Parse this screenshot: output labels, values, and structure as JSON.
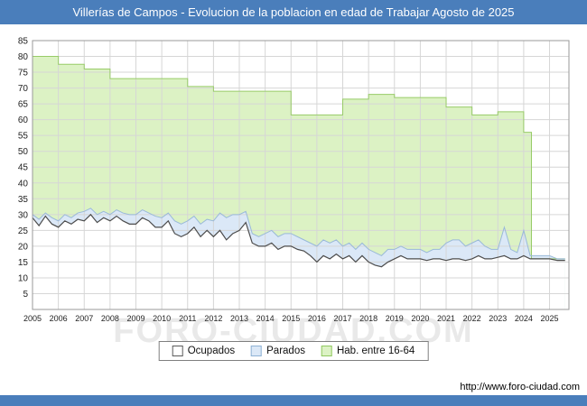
{
  "theme": {
    "bar_color": "#4a7ebb"
  },
  "header": {
    "title": "Villerías de Campos - Evolucion de la poblacion en edad de Trabajar Agosto de 2025"
  },
  "watermark": "FORO-CIUDAD.COM",
  "footer": {
    "url": "http://www.foro-ciudad.com"
  },
  "legend": [
    {
      "label": "Ocupados",
      "fill": "#ffffff",
      "border": "#5a5a5a"
    },
    {
      "label": "Parados",
      "fill": "#dbe8f7",
      "border": "#8fb2d4"
    },
    {
      "label": "Hab. entre 16-64",
      "fill": "#dcf2c4",
      "border": "#90c860"
    }
  ],
  "chart_data": {
    "type": "area",
    "title": "Villerías de Campos - Evolucion de la poblacion en edad de Trabajar Agosto de 2025",
    "xlabel": "",
    "ylabel": "",
    "xlim": [
      2005,
      2025.75
    ],
    "ylim": [
      0,
      85
    ],
    "x_ticks": [
      2005,
      2006,
      2007,
      2008,
      2009,
      2010,
      2011,
      2012,
      2013,
      2014,
      2015,
      2016,
      2017,
      2018,
      2019,
      2020,
      2021,
      2022,
      2023,
      2024,
      2025
    ],
    "y_ticks": [
      5,
      10,
      15,
      20,
      25,
      30,
      35,
      40,
      45,
      50,
      55,
      60,
      65,
      70,
      75,
      80,
      85
    ],
    "grid_color": "#d6d6d6",
    "legend_position": "bottom",
    "series": [
      {
        "name": "Hab. entre 16-64",
        "fill": "#dcf2c4",
        "stroke": "#98cb68",
        "lw": 1,
        "points": [
          [
            2005,
            80
          ],
          [
            2006,
            80
          ],
          [
            2006,
            77.5
          ],
          [
            2007,
            77.5
          ],
          [
            2007,
            76
          ],
          [
            2008,
            76
          ],
          [
            2008,
            73
          ],
          [
            2011,
            73
          ],
          [
            2011,
            70.5
          ],
          [
            2012,
            70.5
          ],
          [
            2012,
            69
          ],
          [
            2015,
            69
          ],
          [
            2015,
            61.5
          ],
          [
            2017,
            61.5
          ],
          [
            2017,
            66.5
          ],
          [
            2018,
            66.5
          ],
          [
            2018,
            68
          ],
          [
            2019,
            68
          ],
          [
            2019,
            67
          ],
          [
            2021,
            67
          ],
          [
            2021,
            64
          ],
          [
            2022,
            64
          ],
          [
            2022,
            61.5
          ],
          [
            2023,
            61.5
          ],
          [
            2023,
            62.5
          ],
          [
            2024,
            62.5
          ],
          [
            2024,
            56
          ],
          [
            2024.3,
            56
          ],
          [
            2024.3,
            16
          ],
          [
            2025.6,
            16
          ]
        ]
      },
      {
        "name": "Parados",
        "fill": "#dbe8f7",
        "stroke": "#9ab9d9",
        "lw": 1,
        "points": [
          [
            2005,
            30
          ],
          [
            2005.25,
            28.5
          ],
          [
            2005.5,
            30.5
          ],
          [
            2005.75,
            29
          ],
          [
            2006,
            28
          ],
          [
            2006.25,
            30
          ],
          [
            2006.5,
            29
          ],
          [
            2006.75,
            30.5
          ],
          [
            2007,
            31
          ],
          [
            2007.25,
            32
          ],
          [
            2007.5,
            30
          ],
          [
            2007.75,
            31
          ],
          [
            2008,
            30
          ],
          [
            2008.25,
            31.5
          ],
          [
            2008.5,
            30.5
          ],
          [
            2008.75,
            30
          ],
          [
            2009,
            30
          ],
          [
            2009.25,
            31.5
          ],
          [
            2009.5,
            30.5
          ],
          [
            2009.75,
            29.5
          ],
          [
            2010,
            29
          ],
          [
            2010.25,
            30.5
          ],
          [
            2010.5,
            28
          ],
          [
            2010.75,
            27
          ],
          [
            2011,
            28
          ],
          [
            2011.25,
            29.5
          ],
          [
            2011.5,
            27
          ],
          [
            2011.75,
            28.5
          ],
          [
            2012,
            28
          ],
          [
            2012.25,
            30.5
          ],
          [
            2012.5,
            29
          ],
          [
            2012.75,
            30
          ],
          [
            2013,
            30
          ],
          [
            2013.25,
            31
          ],
          [
            2013.5,
            24
          ],
          [
            2013.75,
            23
          ],
          [
            2014,
            24
          ],
          [
            2014.25,
            25
          ],
          [
            2014.5,
            23
          ],
          [
            2014.75,
            24
          ],
          [
            2015,
            24
          ],
          [
            2015.25,
            23
          ],
          [
            2015.5,
            22
          ],
          [
            2015.75,
            21
          ],
          [
            2016,
            20
          ],
          [
            2016.25,
            22
          ],
          [
            2016.5,
            21
          ],
          [
            2016.75,
            22
          ],
          [
            2017,
            20
          ],
          [
            2017.25,
            21
          ],
          [
            2017.5,
            19
          ],
          [
            2017.75,
            21
          ],
          [
            2018,
            19
          ],
          [
            2018.25,
            18
          ],
          [
            2018.5,
            17
          ],
          [
            2018.75,
            19
          ],
          [
            2019,
            19
          ],
          [
            2019.25,
            20
          ],
          [
            2019.5,
            19
          ],
          [
            2019.75,
            19
          ],
          [
            2020,
            19
          ],
          [
            2020.25,
            18
          ],
          [
            2020.5,
            19
          ],
          [
            2020.75,
            19
          ],
          [
            2021,
            21
          ],
          [
            2021.25,
            22
          ],
          [
            2021.5,
            22
          ],
          [
            2021.75,
            20
          ],
          [
            2022,
            21
          ],
          [
            2022.25,
            22
          ],
          [
            2022.5,
            20
          ],
          [
            2022.75,
            19
          ],
          [
            2023,
            19
          ],
          [
            2023.25,
            26
          ],
          [
            2023.5,
            19
          ],
          [
            2023.75,
            18
          ],
          [
            2024,
            25
          ],
          [
            2024.25,
            17
          ],
          [
            2024.5,
            17
          ],
          [
            2024.75,
            17
          ],
          [
            2025,
            17
          ],
          [
            2025.3,
            16
          ],
          [
            2025.6,
            16
          ]
        ]
      },
      {
        "name": "Ocupados",
        "fill": "#ffffff",
        "stroke": "#4d4d4d",
        "lw": 1.2,
        "points": [
          [
            2005,
            29
          ],
          [
            2005.25,
            26.5
          ],
          [
            2005.5,
            29.5
          ],
          [
            2005.75,
            27
          ],
          [
            2006,
            26
          ],
          [
            2006.25,
            28
          ],
          [
            2006.5,
            27
          ],
          [
            2006.75,
            28.5
          ],
          [
            2007,
            28
          ],
          [
            2007.25,
            30
          ],
          [
            2007.5,
            27.5
          ],
          [
            2007.75,
            29
          ],
          [
            2008,
            28
          ],
          [
            2008.25,
            29.5
          ],
          [
            2008.5,
            28
          ],
          [
            2008.75,
            27
          ],
          [
            2009,
            27
          ],
          [
            2009.25,
            29
          ],
          [
            2009.5,
            28
          ],
          [
            2009.75,
            26
          ],
          [
            2010,
            26
          ],
          [
            2010.25,
            28
          ],
          [
            2010.5,
            24
          ],
          [
            2010.75,
            23
          ],
          [
            2011,
            24
          ],
          [
            2011.25,
            26
          ],
          [
            2011.5,
            23
          ],
          [
            2011.75,
            25
          ],
          [
            2012,
            23
          ],
          [
            2012.25,
            25
          ],
          [
            2012.5,
            22
          ],
          [
            2012.75,
            24
          ],
          [
            2013,
            25
          ],
          [
            2013.25,
            27.5
          ],
          [
            2013.5,
            21
          ],
          [
            2013.75,
            20
          ],
          [
            2014,
            20
          ],
          [
            2014.25,
            21
          ],
          [
            2014.5,
            19
          ],
          [
            2014.75,
            20
          ],
          [
            2015,
            20
          ],
          [
            2015.25,
            19
          ],
          [
            2015.5,
            18.5
          ],
          [
            2015.75,
            17
          ],
          [
            2016,
            15
          ],
          [
            2016.25,
            17
          ],
          [
            2016.5,
            16
          ],
          [
            2016.75,
            17.5
          ],
          [
            2017,
            16
          ],
          [
            2017.25,
            17
          ],
          [
            2017.5,
            15
          ],
          [
            2017.75,
            17
          ],
          [
            2018,
            15
          ],
          [
            2018.25,
            14
          ],
          [
            2018.5,
            13.5
          ],
          [
            2018.75,
            15
          ],
          [
            2019,
            16
          ],
          [
            2019.25,
            17
          ],
          [
            2019.5,
            16
          ],
          [
            2019.75,
            16
          ],
          [
            2020,
            16
          ],
          [
            2020.25,
            15.5
          ],
          [
            2020.5,
            16
          ],
          [
            2020.75,
            16
          ],
          [
            2021,
            15.5
          ],
          [
            2021.25,
            16
          ],
          [
            2021.5,
            16
          ],
          [
            2021.75,
            15.5
          ],
          [
            2022,
            16
          ],
          [
            2022.25,
            17
          ],
          [
            2022.5,
            16
          ],
          [
            2022.75,
            16
          ],
          [
            2023,
            16.5
          ],
          [
            2023.25,
            17
          ],
          [
            2023.5,
            16
          ],
          [
            2023.75,
            16
          ],
          [
            2024,
            17
          ],
          [
            2024.25,
            16
          ],
          [
            2024.5,
            16
          ],
          [
            2024.75,
            16
          ],
          [
            2025,
            16
          ],
          [
            2025.3,
            15.5
          ],
          [
            2025.6,
            15.5
          ]
        ]
      }
    ]
  }
}
